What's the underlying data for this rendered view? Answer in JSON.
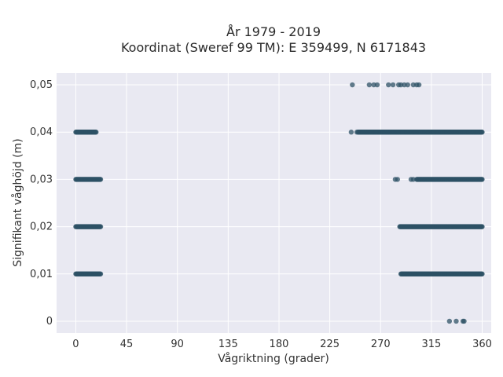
{
  "chart_data": {
    "type": "scatter",
    "title_line1": "År 1979 - 2019",
    "title_line2": "Koordinat (Sweref 99 TM): E 359499, N 6171843",
    "xlabel": "Vågriktning (grader)",
    "ylabel": "Signifikant våghöjd (m)",
    "xlim": [
      -17,
      368
    ],
    "ylim": [
      -0.0025,
      0.0525
    ],
    "x_ticks": [
      0,
      45,
      90,
      135,
      180,
      225,
      270,
      315,
      360
    ],
    "x_tick_labels": [
      "0",
      "45",
      "90",
      "135",
      "180",
      "225",
      "270",
      "315",
      "360"
    ],
    "y_ticks": [
      0,
      0.01,
      0.02,
      0.03,
      0.04,
      0.05
    ],
    "y_tick_labels": [
      "0",
      "0,01",
      "0,02",
      "0,03",
      "0,04",
      "0,05"
    ],
    "grid": true,
    "colors": {
      "background": "#e9e9f2",
      "grid": "#ffffff",
      "marker": "#2e5266"
    },
    "series": [
      {
        "y": 0.05,
        "points": [
          245,
          260,
          264,
          267,
          277,
          281,
          286,
          288,
          291,
          294,
          299,
          302,
          304
        ]
      },
      {
        "y": 0.04,
        "ranges": [
          [
            0,
            18
          ],
          [
            250,
            360
          ]
        ],
        "points": [
          244,
          249
        ]
      },
      {
        "y": 0.03,
        "ranges": [
          [
            0,
            22
          ],
          [
            302,
            360
          ]
        ],
        "points": [
          283,
          285,
          297,
          299
        ]
      },
      {
        "y": 0.02,
        "ranges": [
          [
            0,
            22
          ],
          [
            287,
            360
          ]
        ],
        "points": []
      },
      {
        "y": 0.01,
        "ranges": [
          [
            0,
            22
          ],
          [
            288,
            360
          ]
        ],
        "points": []
      },
      {
        "y": 0.0,
        "points": [
          331,
          337,
          343,
          344
        ]
      }
    ]
  }
}
